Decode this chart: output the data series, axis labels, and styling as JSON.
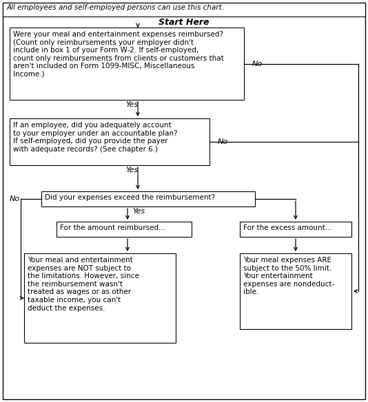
{
  "title_text": "All employees and self-employed persons can use this chart.",
  "start_label": "Start Here",
  "box1_text": "Were your meal and entertainment expenses reimbursed?\n(Count only reimbursements your employer didn't\ninclude in box 1 of your Form W-2. If self-employed,\ncount only reimbursements from clients or customers that\naren't included on Form 1099-MISC, Miscellaneous\nIncome.)",
  "box2_text": "If an employee, did you adequately account\nto your employer under an accountable plan?\nIf self-employed, did you provide the payer\nwith adequate records? (See chapter 6.)",
  "box3_text": "Did your expenses exceed the reimbursement?",
  "box4_text": "For the amount reimbursed...",
  "box5_text": "For the excess amount...",
  "box6_text": "Your meal and entertainment\nexpenses are NOT subject to\nthe limitations. However, since\nthe reimbursement wasn't\ntreated as wages or as other\ntaxable income, you can't\ndeduct the expenses.",
  "box7_text": "Your meal expenses ARE\nsubject to the 50% limit.\nYour entertainment\nexpenses are nondeduct-\nible.",
  "bg_color": "#ffffff",
  "border_color": "#000000",
  "box_fill": "#ffffff",
  "text_color": "#000000"
}
